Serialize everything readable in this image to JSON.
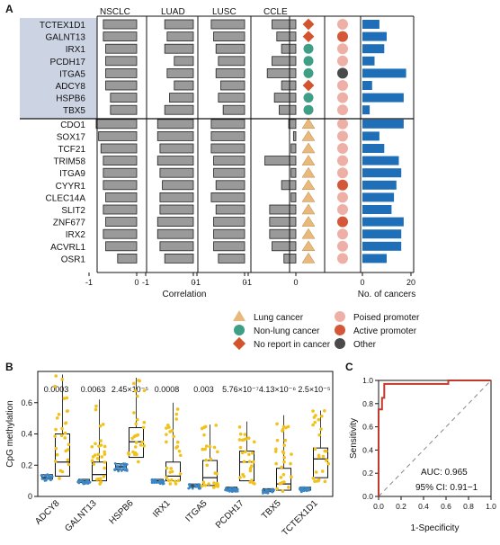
{
  "panel_a": {
    "label": "A",
    "groups": [
      "NSCLC",
      "LUAD",
      "LUSC",
      "CCLE"
    ],
    "genes_top": [
      "TCTEX1D1",
      "GALNT13",
      "IRX1",
      "PCDH17",
      "ITGA5",
      "ADCY8",
      "HSPB6",
      "TBX5"
    ],
    "genes_bottom": [
      "CDO1",
      "SOX17",
      "TCF21",
      "TRIM58",
      "ITGA9",
      "CYYR1",
      "CLEC14A",
      "SLIT2",
      "ZNF677",
      "IRX2",
      "ACVRL1",
      "OSR1"
    ],
    "corr_ticks": [
      "-1",
      "0"
    ],
    "corr_xlabel": "Correlation",
    "cancer_ticks": [
      "0",
      "20"
    ],
    "cancer_xlabel": "No. of cancers",
    "legend": {
      "lung": "Lung cancer",
      "nonlung": "Non-lung cancer",
      "noreport": "No report in cancer",
      "poised": "Poised promoter",
      "active": "Active promoter",
      "other": "Other"
    },
    "colors": {
      "highlight": "#ccd3e3",
      "bar_gray": "#9a9a9a",
      "bar_blue": "#1e6fb8",
      "lung": "#e9b97b",
      "nonlung": "#3e9e86",
      "noreport": "#d2532c",
      "poised": "#eeb0a6",
      "active": "#d5573a",
      "other": "#4a4a4a"
    }
  },
  "chart_data": [
    {
      "type": "bar",
      "title": "",
      "xlabel": "Correlation",
      "xlim": [
        -1,
        0
      ],
      "categories": [
        "TCTEX1D1",
        "GALNT13",
        "IRX1",
        "PCDH17",
        "ITGA5",
        "ADCY8",
        "HSPB6",
        "TBX5",
        "CDO1",
        "SOX17",
        "TCF21",
        "TRIM58",
        "ITGA9",
        "CYYR1",
        "CLEC14A",
        "SLIT2",
        "ZNF677",
        "IRX2",
        "ACVRL1",
        "OSR1"
      ],
      "series": [
        {
          "name": "NSCLC",
          "values": [
            -0.7,
            -0.7,
            -0.65,
            -0.65,
            -0.65,
            -0.65,
            -0.55,
            -0.55,
            -0.85,
            -0.8,
            -0.75,
            -0.7,
            -0.7,
            -0.7,
            -0.65,
            -0.7,
            -0.65,
            -0.7,
            -0.65,
            -0.4
          ]
        },
        {
          "name": "LUAD",
          "values": [
            -0.6,
            -0.55,
            -0.6,
            -0.4,
            -0.55,
            -0.4,
            -0.5,
            -0.6,
            -0.75,
            -0.75,
            -0.7,
            -0.75,
            -0.7,
            -0.65,
            -0.7,
            -0.7,
            -0.75,
            -0.75,
            -0.7,
            -0.6
          ]
        },
        {
          "name": "LUSC",
          "values": [
            -0.7,
            -0.65,
            -0.6,
            -0.55,
            -0.6,
            -0.5,
            -0.55,
            -0.45,
            -0.7,
            -0.7,
            -0.7,
            -0.65,
            -0.65,
            -0.6,
            -0.7,
            -0.6,
            -0.65,
            -0.65,
            -0.65,
            -0.55
          ]
        },
        {
          "name": "CCLE",
          "values": [
            -0.5,
            -0.4,
            -0.3,
            -0.5,
            -0.6,
            -0.3,
            -0.45,
            -0.35,
            -0.15,
            -0.05,
            -0.1,
            -0.65,
            -0.1,
            -0.3,
            -0.1,
            -0.55,
            -0.55,
            -0.55,
            -0.5,
            -0.25
          ]
        }
      ]
    },
    {
      "type": "bar",
      "title": "",
      "xlabel": "No. of cancers",
      "xlim": [
        0,
        20
      ],
      "categories": [
        "TCTEX1D1",
        "GALNT13",
        "IRX1",
        "PCDH17",
        "ITGA5",
        "ADCY8",
        "HSPB6",
        "TBX5",
        "CDO1",
        "SOX17",
        "TCF21",
        "TRIM58",
        "ITGA9",
        "CYYR1",
        "CLEC14A",
        "SLIT2",
        "ZNF677",
        "IRX2",
        "ACVRL1",
        "OSR1"
      ],
      "values": [
        7,
        10,
        9,
        5,
        18,
        4,
        17,
        3,
        17,
        7,
        9,
        15,
        16,
        14,
        13,
        12,
        17,
        16,
        16,
        10
      ],
      "cancer_report": [
        "noreport",
        "noreport",
        "nonlung",
        "nonlung",
        "nonlung",
        "noreport",
        "nonlung",
        "nonlung",
        "lung",
        "lung",
        "lung",
        "lung",
        "lung",
        "lung",
        "lung",
        "lung",
        "lung",
        "lung",
        "lung",
        "lung"
      ],
      "promoter": [
        "poised",
        "active",
        "poised",
        "poised",
        "other",
        "poised",
        "poised",
        "poised",
        "poised",
        "poised",
        "poised",
        "poised",
        "poised",
        "active",
        "poised",
        "poised",
        "active",
        "poised",
        "poised",
        "poised"
      ]
    },
    {
      "type": "scatter",
      "title": "",
      "xlabel": "",
      "ylabel": "CpG methylation",
      "ylim": [
        0,
        0.8
      ],
      "yticks": [
        0,
        0.2,
        0.4,
        0.6
      ],
      "categories": [
        "ADCY8",
        "GALNT13",
        "HSPB6",
        "IRX1",
        "ITGA5",
        "PCDH17",
        "TBX5",
        "TCTEX1D1"
      ],
      "pvalues": [
        "0.0003",
        "0.0063",
        "2.45×10⁻⁵",
        "0.0008",
        "0.003",
        "5.76×10⁻⁷",
        "4.13×10⁻⁶",
        "2.5×10⁻⁵"
      ],
      "normal_median": [
        0.12,
        0.1,
        0.19,
        0.1,
        0.07,
        0.05,
        0.04,
        0.05
      ],
      "normal_q1": [
        0.11,
        0.09,
        0.17,
        0.09,
        0.06,
        0.04,
        0.03,
        0.04
      ],
      "normal_q3": [
        0.14,
        0.11,
        0.21,
        0.11,
        0.08,
        0.06,
        0.05,
        0.06
      ],
      "tumor_median": [
        0.22,
        0.14,
        0.35,
        0.13,
        0.12,
        0.22,
        0.08,
        0.24
      ],
      "tumor_q1": [
        0.13,
        0.1,
        0.25,
        0.1,
        0.07,
        0.1,
        0.04,
        0.12
      ],
      "tumor_q3": [
        0.4,
        0.22,
        0.44,
        0.22,
        0.23,
        0.29,
        0.18,
        0.31
      ],
      "tumor_max": [
        0.78,
        0.62,
        0.76,
        0.6,
        0.46,
        0.48,
        0.52,
        0.55
      ]
    },
    {
      "type": "line",
      "title": "",
      "xlabel": "1-Specificity",
      "ylabel": "Sensitivity",
      "xlim": [
        0,
        1
      ],
      "ylim": [
        0,
        1
      ],
      "ticks": [
        "0.0",
        "0.2",
        "0.4",
        "0.6",
        "0.8",
        "1.0"
      ],
      "x": [
        0.0,
        0.0,
        0.03,
        0.03,
        0.05,
        0.05,
        0.62,
        0.62,
        1.0
      ],
      "y": [
        0.0,
        0.75,
        0.75,
        0.85,
        0.85,
        0.97,
        0.97,
        1.0,
        1.0
      ],
      "auc_text": "AUC:  0.965",
      "ci_text": "95% CI:  0.91−1"
    }
  ],
  "panel_b": {
    "label": "B"
  },
  "panel_c": {
    "label": "C"
  }
}
